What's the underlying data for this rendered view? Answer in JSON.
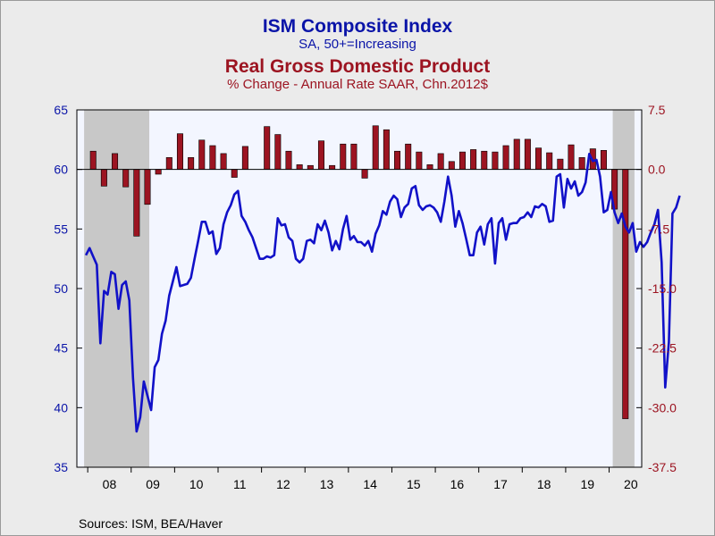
{
  "titles": {
    "line1": "ISM Composite Index",
    "line2": "SA, 50+=Increasing",
    "line3": "Real Gross Domestic Product",
    "line4": "% Change - Annual Rate    SAAR, Chn.2012$"
  },
  "sources": "Sources:  ISM, BEA/Haver",
  "colors": {
    "ism": "#1111c8",
    "gdp": "#9c1421",
    "left_axis": "#0a14a8",
    "right_axis": "#9c1421",
    "plot_bg": "#f3f6ff",
    "recession": "#c8c8c8"
  },
  "chart_data": {
    "type": "bar+line",
    "x_tick_labels": [
      "08",
      "09",
      "10",
      "11",
      "12",
      "13",
      "14",
      "15",
      "16",
      "17",
      "18",
      "19",
      "20"
    ],
    "y_left": {
      "ticks": [
        "65",
        "60",
        "55",
        "50",
        "45",
        "40",
        "35"
      ],
      "range": [
        35,
        65
      ]
    },
    "y_right": {
      "ticks": [
        "7.5",
        "0.0",
        "-7.5",
        "-15.0",
        "-22.5",
        "-30.0",
        "-37.5"
      ],
      "range": [
        -37.5,
        7.5
      ]
    },
    "recession_shading": [
      [
        "2007-12",
        "2009-06"
      ],
      [
        "2020-02",
        "2020-08"
      ]
    ],
    "gdp_quarterly": {
      "start": "2008Q1",
      "values": [
        2.3,
        -2.1,
        2.0,
        -2.2,
        -8.4,
        -4.4,
        -0.6,
        1.5,
        4.5,
        1.5,
        3.7,
        3.0,
        2.0,
        -1.0,
        2.9,
        0.0,
        5.4,
        4.4,
        2.3,
        0.6,
        0.5,
        3.6,
        0.5,
        3.2,
        3.2,
        -1.1,
        5.5,
        5.0,
        2.3,
        3.2,
        2.2,
        0.6,
        2.0,
        1.0,
        2.2,
        2.5,
        2.3,
        2.2,
        3.0,
        3.8,
        3.8,
        2.7,
        2.1,
        1.3,
        3.1,
        1.5,
        2.6,
        2.4,
        -5.0,
        -31.4
      ],
      "name": "Real Gross Domestic Product"
    },
    "ism_monthly": {
      "start": "2007-12",
      "values": [
        52.8,
        53.4,
        52.7,
        52.0,
        45.4,
        49.8,
        49.5,
        51.4,
        51.2,
        48.3,
        50.3,
        50.6,
        49.0,
        42.5,
        38.0,
        39.2,
        42.2,
        41.0,
        39.8,
        43.4,
        44.0,
        46.2,
        47.3,
        49.4,
        50.6,
        51.8,
        50.2,
        50.3,
        50.4,
        50.9,
        52.5,
        54.0,
        55.6,
        55.6,
        54.6,
        54.8,
        52.9,
        53.4,
        55.4,
        56.4,
        57.0,
        57.9,
        58.2,
        56.1,
        55.6,
        54.9,
        54.3,
        53.4,
        52.5,
        52.5,
        52.7,
        52.6,
        52.8,
        55.9,
        55.3,
        55.4,
        54.3,
        54.0,
        52.5,
        52.2,
        52.5,
        54.0,
        54.1,
        53.8,
        55.4,
        54.9,
        55.7,
        54.7,
        53.2,
        54.0,
        53.3,
        55.0,
        56.1,
        54.1,
        54.4,
        53.9,
        53.9,
        53.6,
        54.0,
        53.1,
        54.6,
        55.3,
        56.5,
        56.2,
        57.3,
        57.8,
        57.5,
        56.0,
        56.8,
        57.1,
        58.4,
        58.6,
        57.0,
        56.6,
        56.9,
        57.0,
        56.8,
        56.4,
        55.6,
        57.3,
        59.4,
        57.8,
        55.2,
        56.5,
        55.5,
        54.2,
        52.8,
        52.8,
        54.7,
        55.2,
        53.7,
        55.4,
        55.9,
        52.1,
        55.5,
        55.9,
        54.1,
        55.4,
        55.5,
        55.5,
        55.9,
        56.0,
        56.4,
        56.0,
        56.9,
        56.8,
        57.1,
        56.9,
        55.6,
        55.7,
        59.4,
        59.6,
        56.8,
        59.2,
        58.4,
        59.0,
        57.8,
        58.1,
        58.9,
        61.3,
        60.7,
        60.8,
        59.4,
        56.4,
        56.6,
        58.1,
        56.4,
        55.5,
        56.3,
        55.2,
        54.7,
        55.5,
        53.1,
        53.9,
        53.5,
        53.9,
        54.7,
        55.4,
        56.6,
        52.2,
        41.7,
        45.5,
        56.3,
        56.8,
        57.8
      ],
      "name": "ISM Composite Index"
    }
  }
}
